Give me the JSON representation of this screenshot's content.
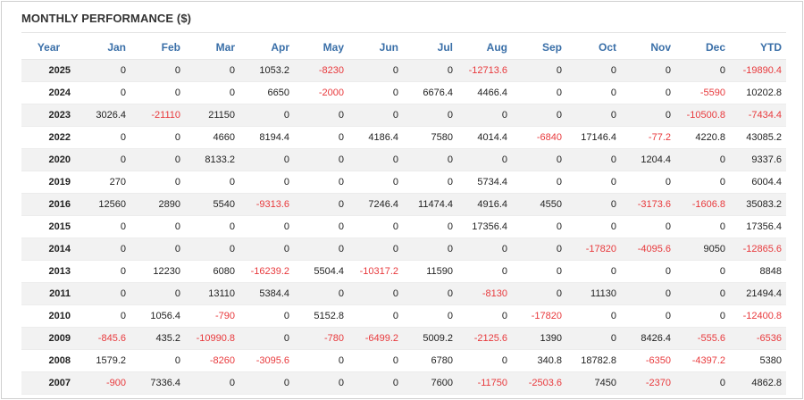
{
  "widget": {
    "title": "MONTHLY PERFORMANCE ($)",
    "negative_color": "#e8393c",
    "header_color": "#3a6fa8"
  },
  "columns": [
    "Year",
    "Jan",
    "Feb",
    "Mar",
    "Apr",
    "May",
    "Jun",
    "Jul",
    "Aug",
    "Sep",
    "Oct",
    "Nov",
    "Dec",
    "YTD"
  ],
  "rows": [
    [
      "2025",
      "0",
      "0",
      "0",
      "1053.2",
      "-8230",
      "0",
      "0",
      "-12713.6",
      "0",
      "0",
      "0",
      "0",
      "-19890.4"
    ],
    [
      "2024",
      "0",
      "0",
      "0",
      "6650",
      "-2000",
      "0",
      "6676.4",
      "4466.4",
      "0",
      "0",
      "0",
      "-5590",
      "10202.8"
    ],
    [
      "2023",
      "3026.4",
      "-21110",
      "21150",
      "0",
      "0",
      "0",
      "0",
      "0",
      "0",
      "0",
      "0",
      "-10500.8",
      "-7434.4"
    ],
    [
      "2022",
      "0",
      "0",
      "4660",
      "8194.4",
      "0",
      "4186.4",
      "7580",
      "4014.4",
      "-6840",
      "17146.4",
      "-77.2",
      "4220.8",
      "43085.2"
    ],
    [
      "2020",
      "0",
      "0",
      "8133.2",
      "0",
      "0",
      "0",
      "0",
      "0",
      "0",
      "0",
      "1204.4",
      "0",
      "9337.6"
    ],
    [
      "2019",
      "270",
      "0",
      "0",
      "0",
      "0",
      "0",
      "0",
      "5734.4",
      "0",
      "0",
      "0",
      "0",
      "6004.4"
    ],
    [
      "2016",
      "12560",
      "2890",
      "5540",
      "-9313.6",
      "0",
      "7246.4",
      "11474.4",
      "4916.4",
      "4550",
      "0",
      "-3173.6",
      "-1606.8",
      "35083.2"
    ],
    [
      "2015",
      "0",
      "0",
      "0",
      "0",
      "0",
      "0",
      "0",
      "17356.4",
      "0",
      "0",
      "0",
      "0",
      "17356.4"
    ],
    [
      "2014",
      "0",
      "0",
      "0",
      "0",
      "0",
      "0",
      "0",
      "0",
      "0",
      "-17820",
      "-4095.6",
      "9050",
      "-12865.6"
    ],
    [
      "2013",
      "0",
      "12230",
      "6080",
      "-16239.2",
      "5504.4",
      "-10317.2",
      "11590",
      "0",
      "0",
      "0",
      "0",
      "0",
      "8848"
    ],
    [
      "2011",
      "0",
      "0",
      "13110",
      "5384.4",
      "0",
      "0",
      "0",
      "-8130",
      "0",
      "11130",
      "0",
      "0",
      "21494.4"
    ],
    [
      "2010",
      "0",
      "1056.4",
      "-790",
      "0",
      "5152.8",
      "0",
      "0",
      "0",
      "-17820",
      "0",
      "0",
      "0",
      "-12400.8"
    ],
    [
      "2009",
      "-845.6",
      "435.2",
      "-10990.8",
      "0",
      "-780",
      "-6499.2",
      "5009.2",
      "-2125.6",
      "1390",
      "0",
      "8426.4",
      "-555.6",
      "-6536"
    ],
    [
      "2008",
      "1579.2",
      "0",
      "-8260",
      "-3095.6",
      "0",
      "0",
      "6780",
      "0",
      "340.8",
      "18782.8",
      "-6350",
      "-4397.2",
      "5380"
    ],
    [
      "2007",
      "-900",
      "7336.4",
      "0",
      "0",
      "0",
      "0",
      "7600",
      "-11750",
      "-2503.6",
      "7450",
      "-2370",
      "0",
      "4862.8"
    ]
  ]
}
